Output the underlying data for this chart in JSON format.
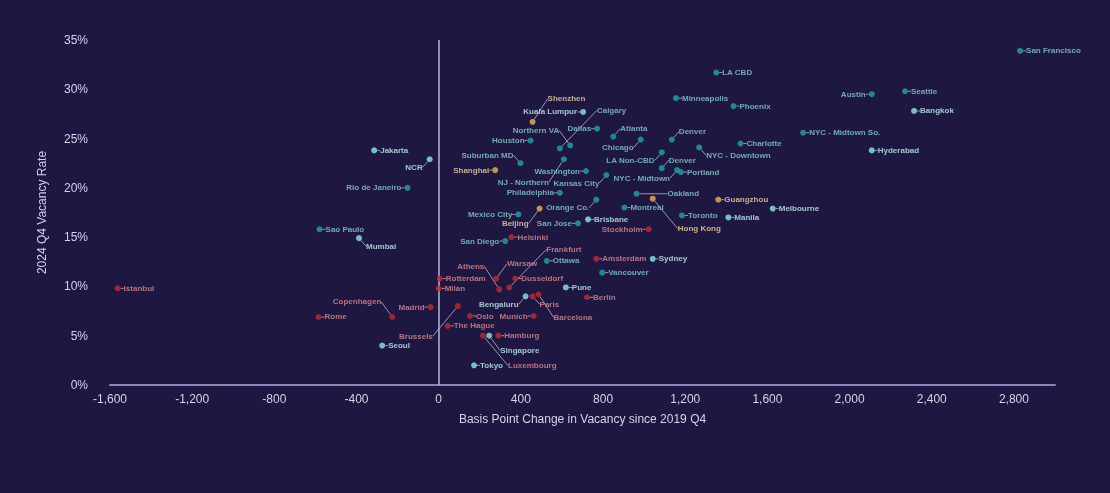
{
  "chart_data": {
    "type": "scatter",
    "xlabel": "Basis Point Change in Vacancy since 2019 Q4",
    "ylabel": "2024 Q4 Vacancy Rate",
    "xlim": [
      -1600,
      3000
    ],
    "xticks": [
      {
        "value": -1600,
        "label": "-1,600"
      },
      {
        "value": -1200,
        "label": "-1,200"
      },
      {
        "value": -800,
        "label": "-800"
      },
      {
        "value": -400,
        "label": "-400"
      },
      {
        "value": 0,
        "label": "0"
      },
      {
        "value": 400,
        "label": "400"
      },
      {
        "value": 800,
        "label": "800"
      },
      {
        "value": 1200,
        "label": "1,200"
      },
      {
        "value": 1600,
        "label": "1,600"
      },
      {
        "value": 2000,
        "label": "2,000"
      },
      {
        "value": 2400,
        "label": "2,400"
      },
      {
        "value": 2800,
        "label": "2,800"
      }
    ],
    "ylim": [
      0,
      35
    ],
    "yticks": [
      {
        "value": 0,
        "label": "0%"
      },
      {
        "value": 5,
        "label": "5%"
      },
      {
        "value": 10,
        "label": "10%"
      },
      {
        "value": 15,
        "label": "15%"
      },
      {
        "value": 20,
        "label": "20%"
      },
      {
        "value": 25,
        "label": "25%"
      },
      {
        "value": 30,
        "label": "30%"
      },
      {
        "value": 35,
        "label": "35%"
      }
    ],
    "grid": false,
    "marker": "circle",
    "ref_lines": [
      {
        "axis": "x",
        "value": 0,
        "color": "#b9b4d6"
      }
    ],
    "series": [
      {
        "color": "#1ea5a8",
        "x": [
          2830,
          2108,
          2270,
          1351,
          1155,
          1435,
          771,
          850,
          983,
          1135,
          1469,
          1774,
          1268,
          1086,
          1086,
          1160,
          1179,
          816,
          963,
          767,
          717,
          590,
          590,
          640,
          609,
          447,
          398,
          388,
          324,
          678,
          904,
          1184,
          526,
          796,
          -152,
          -580
        ],
        "values": [
          33.9,
          29.5,
          29.8,
          31.7,
          29.1,
          28.3,
          26.0,
          25.2,
          24.9,
          24.9,
          24.5,
          25.6,
          24.1,
          23.6,
          22.0,
          21.8,
          21.6,
          21.3,
          19.4,
          18.8,
          21.7,
          19.5,
          24.0,
          24.3,
          22.9,
          24.8,
          22.5,
          17.3,
          14.6,
          16.4,
          18.0,
          17.2,
          12.6,
          11.4,
          20.0,
          15.8
        ]
      },
      {
        "color": "#8ee8e6",
        "x": [
          703,
          2314,
          2108,
          1626,
          1410,
          -314,
          -44,
          -388,
          727,
          1042,
          619,
          423,
          246,
          172,
          -275
        ],
        "values": [
          27.7,
          27.8,
          23.8,
          17.9,
          17.0,
          23.8,
          22.9,
          14.9,
          16.8,
          12.8,
          9.9,
          9.0,
          5.0,
          2.0,
          4.0
        ]
      },
      {
        "color": "#f0b055",
        "x": [
          457,
          275,
          491,
          1042,
          1361
        ],
        "values": [
          26.7,
          21.8,
          17.9,
          18.9,
          18.8
        ]
      },
      {
        "color": "#c22a30",
        "x": [
          -1563,
          -585,
          5,
          0,
          -39,
          -226,
          280,
          373,
          295,
          344,
          457,
          722,
          486,
          462,
          93,
          152,
          44,
          290,
          216,
          767,
          1022,
          354
        ],
        "values": [
          9.8,
          6.9,
          10.8,
          9.8,
          7.9,
          6.9,
          10.8,
          10.8,
          9.7,
          9.9,
          9.0,
          8.9,
          9.2,
          7.0,
          8.0,
          7.0,
          6.0,
          5.0,
          5.0,
          12.8,
          15.8,
          15.0
        ]
      }
    ],
    "annotations": [
      {
        "text": "San Francisco",
        "x": 2830,
        "y": 33.9
      },
      {
        "text": "Austin",
        "x": 2108,
        "y": 29.5
      },
      {
        "text": "Seattle",
        "x": 2270,
        "y": 29.8
      },
      {
        "text": "LA CBD",
        "x": 1351,
        "y": 31.7
      },
      {
        "text": "Minneapolis",
        "x": 1155,
        "y": 29.1
      },
      {
        "text": "Phoenix",
        "x": 1435,
        "y": 28.3
      },
      {
        "text": "Dallas",
        "x": 771,
        "y": 26.0
      },
      {
        "text": "Atlanta",
        "x": 850,
        "y": 25.2
      },
      {
        "text": "Chicago",
        "x": 983,
        "y": 24.9
      },
      {
        "text": "Denver",
        "x": 1135,
        "y": 24.9
      },
      {
        "text": "Charlotte",
        "x": 1469,
        "y": 24.5
      },
      {
        "text": "NYC - Midtown So.",
        "x": 1774,
        "y": 25.6
      },
      {
        "text": "NYC - Downtown",
        "x": 1268,
        "y": 24.1
      },
      {
        "text": "LA Non-CBD",
        "x": 1086,
        "y": 23.6
      },
      {
        "text": "Denver",
        "x": 1086,
        "y": 22.0
      },
      {
        "text": "NYC - Midtown",
        "x": 1160,
        "y": 21.8
      },
      {
        "text": "Portland",
        "x": 1179,
        "y": 21.6
      },
      {
        "text": "Kansas City",
        "x": 816,
        "y": 21.3
      },
      {
        "text": "Oakland",
        "x": 963,
        "y": 19.4
      },
      {
        "text": "Orange Co.",
        "x": 767,
        "y": 18.8
      },
      {
        "text": "Washington",
        "x": 717,
        "y": 21.7
      },
      {
        "text": "Philadelphia",
        "x": 590,
        "y": 19.5
      },
      {
        "text": "Calgary",
        "x": 590,
        "y": 24.0
      },
      {
        "text": "Northern VA",
        "x": 640,
        "y": 24.3
      },
      {
        "text": "NJ - Northern",
        "x": 609,
        "y": 22.9
      },
      {
        "text": "Houston",
        "x": 447,
        "y": 24.8
      },
      {
        "text": "Suburban MD",
        "x": 398,
        "y": 22.5
      },
      {
        "text": "Mexico City",
        "x": 388,
        "y": 17.3
      },
      {
        "text": "San Diego",
        "x": 324,
        "y": 14.6
      },
      {
        "text": "San Jose",
        "x": 678,
        "y": 16.4
      },
      {
        "text": "Montreal",
        "x": 904,
        "y": 18.0
      },
      {
        "text": "Toronto",
        "x": 1184,
        "y": 17.2
      },
      {
        "text": "Ottawa",
        "x": 526,
        "y": 12.6
      },
      {
        "text": "Vancouver",
        "x": 796,
        "y": 11.4
      },
      {
        "text": "Rio de Janeiro",
        "x": -152,
        "y": 20.0
      },
      {
        "text": "Sao Paulo",
        "x": -580,
        "y": 15.8
      },
      {
        "text": "Kuala Lumpur",
        "x": 703,
        "y": 27.7
      },
      {
        "text": "Bangkok",
        "x": 2314,
        "y": 27.8
      },
      {
        "text": "Hyderabad",
        "x": 2108,
        "y": 23.8
      },
      {
        "text": "Melbourne",
        "x": 1626,
        "y": 17.9
      },
      {
        "text": "Manila",
        "x": 1410,
        "y": 17.0
      },
      {
        "text": "Jakarta",
        "x": -314,
        "y": 23.8
      },
      {
        "text": "NCR",
        "x": -44,
        "y": 22.9
      },
      {
        "text": "Mumbai",
        "x": -388,
        "y": 14.9
      },
      {
        "text": "Brisbane",
        "x": 727,
        "y": 16.8
      },
      {
        "text": "Sydney",
        "x": 1042,
        "y": 12.8
      },
      {
        "text": "Pune",
        "x": 619,
        "y": 9.9
      },
      {
        "text": "Bengaluru",
        "x": 423,
        "y": 9.0
      },
      {
        "text": "Singapore",
        "x": 246,
        "y": 5.0
      },
      {
        "text": "Tokyo",
        "x": 172,
        "y": 2.0
      },
      {
        "text": "Seoul",
        "x": -275,
        "y": 4.0
      },
      {
        "text": "Shenzhen",
        "x": 457,
        "y": 26.7
      },
      {
        "text": "Shanghai",
        "x": 275,
        "y": 21.8
      },
      {
        "text": "Beijing",
        "x": 491,
        "y": 17.9
      },
      {
        "text": "Hong Kong",
        "x": 1042,
        "y": 18.9
      },
      {
        "text": "Guangzhou",
        "x": 1361,
        "y": 18.8
      },
      {
        "text": "Istanbul",
        "x": -1563,
        "y": 9.8
      },
      {
        "text": "Rome",
        "x": -585,
        "y": 6.9
      },
      {
        "text": "Rotterdam",
        "x": 5,
        "y": 10.8
      },
      {
        "text": "Milan",
        "x": 0,
        "y": 9.8
      },
      {
        "text": "Madrid",
        "x": -39,
        "y": 7.9
      },
      {
        "text": "Copenhagen",
        "x": -226,
        "y": 6.9
      },
      {
        "text": "Warsaw",
        "x": 280,
        "y": 10.8
      },
      {
        "text": "Dusseldorf",
        "x": 373,
        "y": 10.8
      },
      {
        "text": "Athens",
        "x": 295,
        "y": 9.7
      },
      {
        "text": "Frankfurt",
        "x": 344,
        "y": 9.9
      },
      {
        "text": "Paris",
        "x": 457,
        "y": 9.0
      },
      {
        "text": "Berlin",
        "x": 722,
        "y": 8.9
      },
      {
        "text": "Barcelona",
        "x": 486,
        "y": 9.2
      },
      {
        "text": "Munich",
        "x": 462,
        "y": 7.0
      },
      {
        "text": "Brussels",
        "x": 93,
        "y": 8.0
      },
      {
        "text": "Oslo",
        "x": 152,
        "y": 7.0
      },
      {
        "text": "The Hague",
        "x": 44,
        "y": 6.0
      },
      {
        "text": "Hamburg",
        "x": 290,
        "y": 5.0
      },
      {
        "text": "Luxembourg",
        "x": 216,
        "y": 5.0
      },
      {
        "text": "Amsterdam",
        "x": 767,
        "y": 12.8
      },
      {
        "text": "Stockholm",
        "x": 1022,
        "y": 15.8
      },
      {
        "text": "Helsinki",
        "x": 354,
        "y": 15.0
      }
    ]
  }
}
